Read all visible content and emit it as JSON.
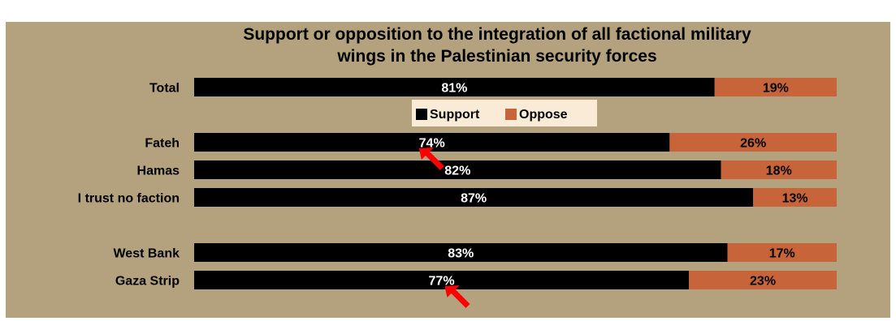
{
  "colors": {
    "background": "#b4a27e",
    "support": "#000000",
    "oppose": "#c8643a",
    "legend_bg": "#faebd7",
    "arrow": "#ff0000"
  },
  "chart_data": {
    "type": "bar",
    "orientation": "horizontal",
    "stacked": true,
    "title": "Support or opposition to the integration of all factional military wings in the Palestinian security forces",
    "title_lines": [
      "Support or opposition to the integration of all factional military",
      "wings in the Palestinian security forces"
    ],
    "categories": [
      "Total",
      "Fateh",
      "Hamas",
      "I trust no faction",
      "West Bank",
      "Gaza Strip"
    ],
    "series": [
      {
        "name": "Support",
        "values": [
          81,
          74,
          82,
          87,
          83,
          77
        ],
        "labels": [
          "81%",
          "74%",
          "82%",
          "87%",
          "83%",
          "77%"
        ]
      },
      {
        "name": "Oppose",
        "values": [
          19,
          26,
          18,
          13,
          17,
          23
        ],
        "labels": [
          "19%",
          "26%",
          "18%",
          "13%",
          "17%",
          "23%"
        ]
      }
    ],
    "xlim": [
      0,
      100
    ],
    "grid": false,
    "legend": "below-first-bar",
    "annotations": [
      {
        "type": "arrow",
        "category": "Fateh",
        "value": 35
      },
      {
        "type": "arrow",
        "category": "Gaza Strip",
        "value": 39
      }
    ]
  }
}
